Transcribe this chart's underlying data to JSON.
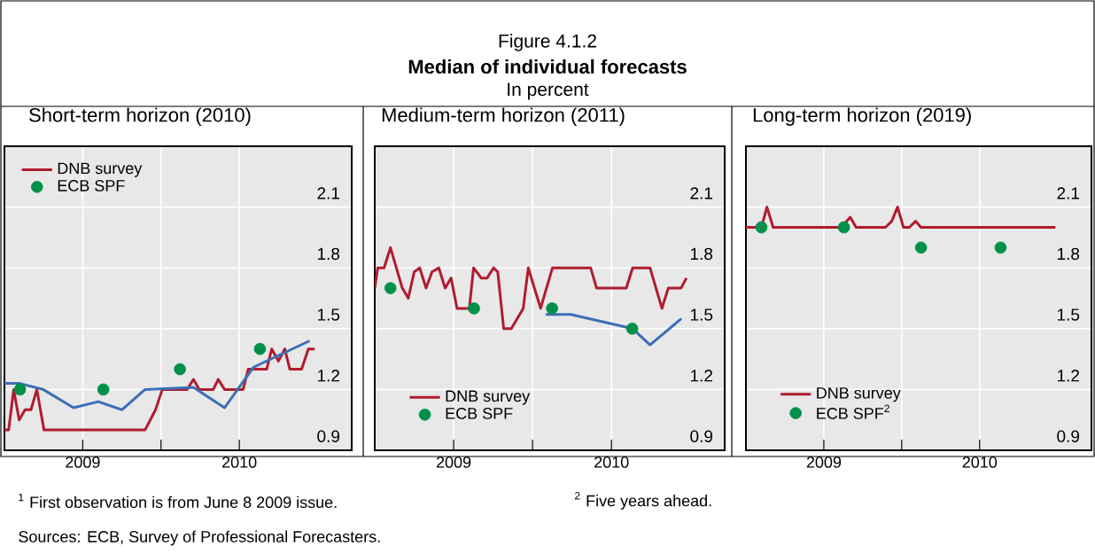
{
  "chart_data": [
    {
      "type": "line",
      "title": "Short-term horizon (2010)",
      "annotations": [
        "Figure 4.1.2",
        "Median of individual forecasts",
        "In percent",
        "$^{1}$ First observation is from June 8 2009 issue.",
        "$^{2}$ Five years ahead.",
        "Sources: ECB, Survey of Professional Forecasters."
      ],
      "xlim": [
        "2009-01-01",
        "2011-03-20"
      ],
      "xticks": [
        {
          "value": "2009-07-01",
          "label": "2009"
        },
        {
          "value": "2010-01-01",
          "label": null
        },
        {
          "value": "2010-07-01",
          "label": "2010"
        }
      ],
      "ylim": [
        0.9,
        2.4
      ],
      "yticks": [
        0.9,
        1.2,
        1.5,
        1.8,
        2.1
      ],
      "grid": true,
      "legend": "top left",
      "series": [
        {
          "name": "DNB survey",
          "color": "#b01c2e",
          "x": [
            "2009-01-01",
            "2009-01-11",
            "2009-01-23",
            "2009-02-05",
            "2009-02-19",
            "2009-03-02",
            "2009-03-16",
            "2009-04-02",
            "2009-11-25",
            "2009-12-19",
            "2010-01-04",
            "2010-03-01",
            "2010-03-16",
            "2010-03-30",
            "2010-05-01",
            "2010-05-13",
            "2010-05-28",
            "2010-07-10",
            "2010-07-22",
            "2010-09-04",
            "2010-09-16",
            "2010-10-01",
            "2010-10-16",
            "2010-10-28",
            "2010-11-25",
            "2010-12-10",
            "2010-12-25"
          ],
          "values": [
            1.0,
            1.0,
            1.2,
            1.05,
            1.1,
            1.1,
            1.2,
            1.0,
            1.0,
            1.1,
            1.2,
            1.2,
            1.25,
            1.2,
            1.2,
            1.25,
            1.2,
            1.2,
            1.3,
            1.3,
            1.4,
            1.34,
            1.4,
            1.3,
            1.3,
            1.4,
            1.4
          ]
        },
        {
          "color": "#3a6fb5",
          "x": [
            "2009-01-01",
            "2009-02-05",
            "2009-03-31",
            "2009-06-10",
            "2009-08-07",
            "2009-10-01",
            "2009-11-25",
            "2010-03-16",
            "2010-05-28",
            "2010-08-04",
            "2010-12-13"
          ],
          "values": [
            1.23,
            1.23,
            1.2,
            1.11,
            1.14,
            1.1,
            1.2,
            1.21,
            1.11,
            1.31,
            1.44
          ]
        },
        {
          "name": "ECB SPF",
          "color": "#00904a",
          "type": "scatter",
          "marker": "circle",
          "x": [
            "2009-02-07",
            "2009-08-19",
            "2010-02-15",
            "2010-08-19"
          ],
          "values": [
            1.2,
            1.2,
            1.3,
            1.4
          ]
        }
      ]
    },
    {
      "type": "line",
      "title": "Medium-term horizon (2011)",
      "xlim": [
        "2009-01-01",
        "2011-03-20"
      ],
      "xticks": [
        {
          "value": "2009-07-01",
          "label": "2009"
        },
        {
          "value": "2010-01-01",
          "label": null
        },
        {
          "value": "2010-07-01",
          "label": "2010"
        }
      ],
      "ylim": [
        0.9,
        2.4
      ],
      "yticks": [
        0.9,
        1.2,
        1.5,
        1.8,
        2.1
      ],
      "grid": true,
      "legend": "bottom left",
      "series": [
        {
          "name": "DNB survey",
          "color": "#b01c2e",
          "x": [
            "2009-01-01",
            "2009-01-08",
            "2009-01-23",
            "2009-02-07",
            "2009-03-04",
            "2009-03-18",
            "2009-04-01",
            "2009-04-14",
            "2009-04-29",
            "2009-05-12",
            "2009-05-28",
            "2009-06-12",
            "2009-06-26",
            "2009-07-09",
            "2009-08-07",
            "2009-08-17",
            "2009-09-04",
            "2009-09-18",
            "2009-10-02",
            "2009-10-12",
            "2009-10-26",
            "2009-11-13",
            "2009-12-10",
            "2009-12-22",
            "2010-01-20",
            "2010-02-17",
            "2010-05-14",
            "2010-05-28",
            "2010-08-05",
            "2010-08-20",
            "2010-09-30",
            "2010-10-27",
            "2010-11-11",
            "2010-12-10",
            "2010-12-23"
          ],
          "values": [
            1.7,
            1.8,
            1.8,
            1.9,
            1.7,
            1.65,
            1.78,
            1.8,
            1.7,
            1.78,
            1.8,
            1.7,
            1.75,
            1.6,
            1.6,
            1.8,
            1.75,
            1.75,
            1.8,
            1.78,
            1.5,
            1.5,
            1.6,
            1.8,
            1.6,
            1.8,
            1.8,
            1.7,
            1.7,
            1.8,
            1.8,
            1.6,
            1.7,
            1.7,
            1.75
          ]
        },
        {
          "color": "#3a6fb5",
          "x": [
            "2010-02-01",
            "2010-03-29",
            "2010-08-20",
            "2010-09-30",
            "2010-12-11"
          ],
          "values": [
            1.57,
            1.57,
            1.5,
            1.42,
            1.55
          ]
        },
        {
          "name": "ECB SPF",
          "color": "#00904a",
          "type": "scatter",
          "marker": "circle",
          "x": [
            "2009-02-07",
            "2009-08-18",
            "2010-02-16",
            "2010-08-19"
          ],
          "values": [
            1.7,
            1.6,
            1.6,
            1.5
          ]
        }
      ]
    },
    {
      "type": "line",
      "title": "Long-term horizon (2019)",
      "xlim": [
        "2009-01-01",
        "2011-03-20"
      ],
      "xticks": [
        {
          "value": "2009-07-01",
          "label": "2009"
        },
        {
          "value": "2010-01-01",
          "label": null
        },
        {
          "value": "2010-07-01",
          "label": "2010"
        }
      ],
      "ylim": [
        0.9,
        2.4
      ],
      "yticks": [
        0.9,
        1.2,
        1.5,
        1.8,
        2.1
      ],
      "grid": true,
      "legend": "bottom left",
      "series": [
        {
          "name": "DNB survey",
          "color": "#b01c2e",
          "x": [
            "2009-01-01",
            "2009-02-07",
            "2009-02-20",
            "2009-03-04",
            "2009-08-12",
            "2009-09-02",
            "2009-09-16",
            "2009-11-24",
            "2009-12-08",
            "2009-12-22",
            "2010-01-05",
            "2010-01-19",
            "2010-02-03",
            "2010-02-16",
            "2010-12-27"
          ],
          "values": [
            2.0,
            2.0,
            2.1,
            2.0,
            2.0,
            2.05,
            2.0,
            2.0,
            2.03,
            2.1,
            2.0,
            2.0,
            2.03,
            2.0,
            2.0
          ]
        },
        {
          "name": "ECB SPF$^{2}$",
          "color": "#00904a",
          "type": "scatter",
          "marker": "circle",
          "x": [
            "2009-02-07",
            "2009-08-18",
            "2010-02-16",
            "2010-08-20"
          ],
          "values": [
            2.0,
            2.0,
            1.9,
            1.9
          ]
        }
      ]
    }
  ]
}
